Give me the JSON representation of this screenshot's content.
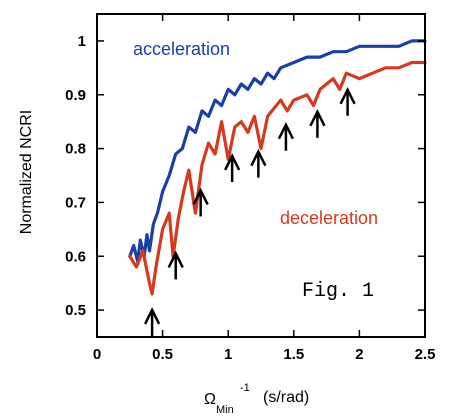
{
  "chart_data": {
    "type": "line",
    "xlabel": "Ω_Min^-1 (s/rad)",
    "xlabel_parts": {
      "omega": "Ω",
      "sub": "Min",
      "sup": "-1",
      "unit": "(s/rad)"
    },
    "ylabel": "Normalized NCRI",
    "xlim": [
      0,
      2.5
    ],
    "ylim": [
      0.45,
      1.05
    ],
    "x_ticks": [
      "0",
      "0.5",
      "1",
      "1.5",
      "2",
      "2.5"
    ],
    "x_tick_values": [
      0,
      0.5,
      1,
      1.5,
      2,
      2.5
    ],
    "y_ticks": [
      "0.5",
      "0.6",
      "0.7",
      "0.8",
      "0.9",
      "1"
    ],
    "y_tick_values": [
      0.5,
      0.6,
      0.7,
      0.8,
      0.9,
      1.0
    ],
    "grid": false,
    "annotation": "Fig. 1",
    "series": [
      {
        "name": "acceleration",
        "color": "#1a3fa8",
        "x": [
          0.25,
          0.28,
          0.31,
          0.33,
          0.36,
          0.38,
          0.4,
          0.43,
          0.46,
          0.5,
          0.55,
          0.6,
          0.65,
          0.7,
          0.75,
          0.8,
          0.85,
          0.9,
          0.95,
          1.0,
          1.05,
          1.1,
          1.15,
          1.2,
          1.25,
          1.3,
          1.35,
          1.4,
          1.5,
          1.6,
          1.7,
          1.8,
          1.9,
          2.0,
          2.1,
          2.2,
          2.3,
          2.4,
          2.5
        ],
        "y": [
          0.6,
          0.62,
          0.59,
          0.63,
          0.6,
          0.64,
          0.61,
          0.66,
          0.68,
          0.72,
          0.75,
          0.79,
          0.8,
          0.84,
          0.83,
          0.87,
          0.86,
          0.89,
          0.88,
          0.91,
          0.9,
          0.92,
          0.91,
          0.93,
          0.92,
          0.94,
          0.93,
          0.95,
          0.96,
          0.97,
          0.97,
          0.98,
          0.98,
          0.99,
          0.99,
          0.99,
          0.99,
          1.0,
          1.0
        ]
      },
      {
        "name": "deceleration",
        "color": "#d63a1e",
        "x": [
          0.25,
          0.3,
          0.35,
          0.4,
          0.42,
          0.45,
          0.5,
          0.55,
          0.58,
          0.62,
          0.66,
          0.7,
          0.75,
          0.8,
          0.85,
          0.9,
          0.95,
          1.0,
          1.05,
          1.1,
          1.15,
          1.2,
          1.25,
          1.3,
          1.4,
          1.45,
          1.5,
          1.6,
          1.65,
          1.7,
          1.8,
          1.85,
          1.9,
          2.0,
          2.1,
          2.2,
          2.3,
          2.4,
          2.5
        ],
        "y": [
          0.6,
          0.58,
          0.61,
          0.55,
          0.53,
          0.58,
          0.65,
          0.68,
          0.6,
          0.67,
          0.72,
          0.76,
          0.68,
          0.77,
          0.81,
          0.79,
          0.85,
          0.78,
          0.84,
          0.85,
          0.83,
          0.86,
          0.8,
          0.86,
          0.89,
          0.87,
          0.89,
          0.9,
          0.88,
          0.91,
          0.93,
          0.91,
          0.94,
          0.93,
          0.94,
          0.95,
          0.95,
          0.96,
          0.96
        ]
      }
    ],
    "arrows_x": [
      0.42,
      0.6,
      0.79,
      1.03,
      1.23,
      1.44,
      1.68,
      1.91
    ]
  }
}
